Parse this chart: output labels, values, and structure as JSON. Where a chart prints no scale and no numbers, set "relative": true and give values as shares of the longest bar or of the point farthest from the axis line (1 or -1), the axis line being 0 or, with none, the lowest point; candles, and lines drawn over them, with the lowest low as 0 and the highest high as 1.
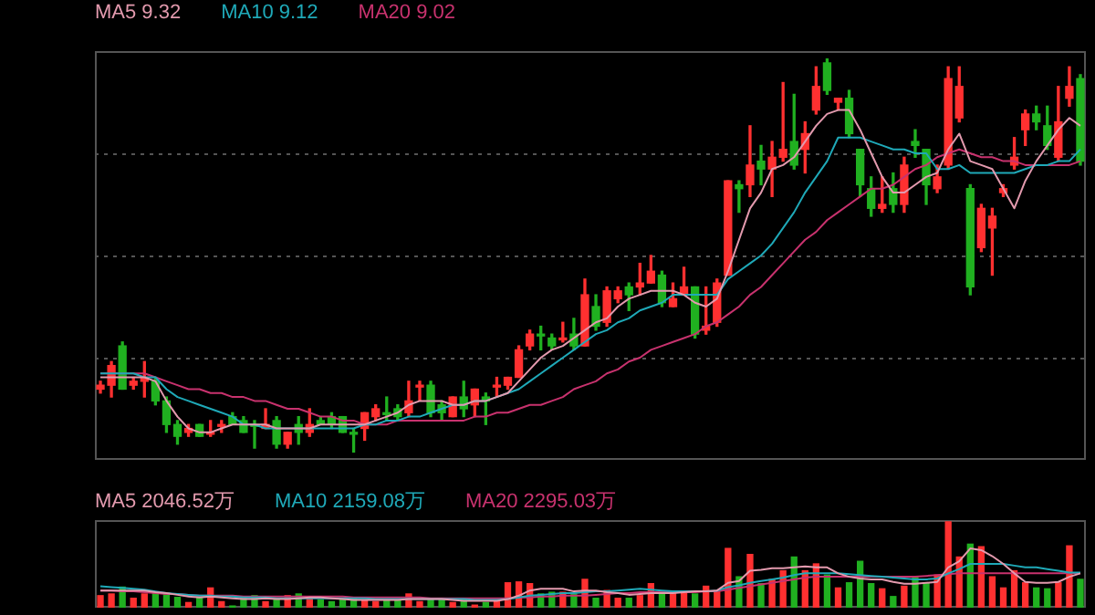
{
  "chart_data": [
    {
      "type": "candlestick",
      "relative": true,
      "grid": true,
      "legend": "top left",
      "categories": [
        null,
        null,
        null,
        null,
        null,
        null,
        null,
        null,
        null,
        null,
        null,
        null,
        null,
        null,
        null,
        null,
        null,
        null,
        null,
        null,
        null,
        null,
        null,
        null,
        null,
        null,
        null,
        null,
        null,
        null,
        null,
        null,
        null,
        null,
        null,
        null,
        null,
        null,
        null,
        null,
        null,
        null,
        null,
        null,
        null,
        null,
        null,
        null,
        null,
        null,
        null,
        null,
        null,
        null,
        null,
        null,
        null,
        null,
        null,
        null,
        null,
        null,
        null,
        null,
        null,
        null,
        null,
        null,
        null,
        null,
        null,
        null,
        null,
        null,
        null,
        null,
        null,
        null,
        null,
        null,
        null,
        null,
        null,
        null,
        null,
        null,
        null,
        null,
        null,
        null
      ],
      "ohlc": [
        [
          0.16,
          0.18,
          0.15,
          0.17
        ],
        [
          0.17,
          0.23,
          0.14,
          0.22
        ],
        [
          0.27,
          0.28,
          0.16,
          0.16
        ],
        [
          0.17,
          0.19,
          0.16,
          0.18
        ],
        [
          0.18,
          0.23,
          0.14,
          0.19
        ],
        [
          0.18,
          0.19,
          0.12,
          0.13
        ],
        [
          0.13,
          0.14,
          0.05,
          0.07
        ],
        [
          0.07,
          0.08,
          0.02,
          0.04
        ],
        [
          0.05,
          0.07,
          0.04,
          0.06
        ],
        [
          0.07,
          0.07,
          0.04,
          0.04
        ],
        [
          0.05,
          0.08,
          0.04,
          0.05
        ],
        [
          0.07,
          0.08,
          0.05,
          0.07
        ],
        [
          0.09,
          0.1,
          0.07,
          0.07
        ],
        [
          0.08,
          0.09,
          0.05,
          0.05
        ],
        [
          0.07,
          0.08,
          0.01,
          0.07
        ],
        [
          0.06,
          0.11,
          0.06,
          0.07
        ],
        [
          0.08,
          0.09,
          0.01,
          0.02
        ],
        [
          0.02,
          0.05,
          0.01,
          0.05
        ],
        [
          0.07,
          0.09,
          0.02,
          0.05
        ],
        [
          0.05,
          0.11,
          0.04,
          0.07
        ],
        [
          0.08,
          0.09,
          0.07,
          0.07
        ],
        [
          0.09,
          0.1,
          0.06,
          0.07
        ],
        [
          0.09,
          0.09,
          0.05,
          0.05
        ],
        [
          0.05,
          0.06,
          0,
          0.05
        ],
        [
          0.06,
          0.1,
          0.03,
          0.1
        ],
        [
          0.09,
          0.12,
          0.08,
          0.11
        ],
        [
          0.1,
          0.14,
          0.08,
          0.1
        ],
        [
          0.11,
          0.12,
          0.08,
          0.09
        ],
        [
          0.1,
          0.18,
          0.09,
          0.13
        ],
        [
          0.17,
          0.18,
          0.13,
          0.17
        ],
        [
          0.17,
          0.18,
          0.09,
          0.1
        ],
        [
          0.12,
          0.13,
          0.08,
          0.1
        ],
        [
          0.09,
          0.14,
          0.09,
          0.14
        ],
        [
          0.14,
          0.18,
          0.09,
          0.11
        ],
        [
          0.12,
          0.16,
          0.09,
          0.16
        ],
        [
          0.14,
          0.15,
          0.07,
          0.13
        ],
        [
          0.17,
          0.19,
          0.14,
          0.17
        ],
        [
          0.17,
          0.19,
          0.16,
          0.19
        ],
        [
          0.19,
          0.27,
          0.19,
          0.26
        ],
        [
          0.27,
          0.31,
          0.26,
          0.3
        ],
        [
          0.3,
          0.32,
          0.26,
          0.3
        ],
        [
          0.29,
          0.3,
          0.26,
          0.27
        ],
        [
          0.29,
          0.33,
          0.28,
          0.29
        ],
        [
          0.3,
          0.34,
          0.26,
          0.27
        ],
        [
          0.27,
          0.44,
          0.27,
          0.4
        ],
        [
          0.37,
          0.4,
          0.31,
          0.32
        ],
        [
          0.33,
          0.42,
          0.32,
          0.41
        ],
        [
          0.39,
          0.42,
          0.38,
          0.41
        ],
        [
          0.42,
          0.43,
          0.36,
          0.4
        ],
        [
          0.42,
          0.48,
          0.4,
          0.43
        ],
        [
          0.43,
          0.5,
          0.43,
          0.46
        ],
        [
          0.45,
          0.46,
          0.37,
          0.38
        ],
        [
          0.37,
          0.43,
          0.37,
          0.39
        ],
        [
          0.4,
          0.47,
          0.4,
          0.42
        ],
        [
          0.42,
          0.42,
          0.29,
          0.3
        ],
        [
          0.31,
          0.42,
          0.3,
          0.32
        ],
        [
          0.33,
          0.44,
          0.32,
          0.43
        ],
        [
          0.45,
          0.69,
          0.45,
          0.69
        ],
        [
          0.68,
          0.69,
          0.61,
          0.67
        ],
        [
          0.68,
          0.83,
          0.65,
          0.73
        ],
        [
          0.74,
          0.78,
          0.68,
          0.72
        ],
        [
          0.72,
          0.79,
          0.65,
          0.75
        ],
        [
          0.75,
          0.94,
          0.74,
          0.77
        ],
        [
          0.79,
          0.91,
          0.72,
          0.73
        ],
        [
          0.77,
          0.84,
          0.71,
          0.81
        ],
        [
          0.87,
          0.98,
          0.86,
          0.93
        ],
        [
          0.99,
          1,
          0.91,
          0.92
        ],
        [
          0.89,
          0.9,
          0.87,
          0.9
        ],
        [
          0.9,
          0.92,
          0.8,
          0.81
        ],
        [
          0.77,
          0.77,
          0.65,
          0.68
        ],
        [
          0.67,
          0.7,
          0.6,
          0.62
        ],
        [
          0.62,
          0.7,
          0.61,
          0.63
        ],
        [
          0.67,
          0.71,
          0.61,
          0.63
        ],
        [
          0.63,
          0.75,
          0.61,
          0.73
        ],
        [
          0.79,
          0.82,
          0.75,
          0.78
        ],
        [
          0.77,
          0.77,
          0.63,
          0.68
        ],
        [
          0.67,
          0.73,
          0.66,
          0.7
        ],
        [
          0.73,
          0.98,
          0.72,
          0.95
        ],
        [
          0.85,
          0.98,
          0.84,
          0.93
        ],
        [
          0.67,
          0.68,
          0.4,
          0.42
        ],
        [
          0.52,
          0.63,
          0.51,
          0.62
        ],
        [
          0.57,
          0.62,
          0.45,
          0.6
        ],
        [
          0.66,
          0.68,
          0.65,
          0.67
        ],
        [
          0.73,
          0.8,
          0.72,
          0.75
        ],
        [
          0.82,
          0.87,
          0.78,
          0.86
        ],
        [
          0.86,
          0.88,
          0.82,
          0.84
        ],
        [
          0.83,
          0.88,
          0.77,
          0.78
        ],
        [
          0.75,
          0.93,
          0.74,
          0.84
        ],
        [
          0.9,
          0.98,
          0.88,
          0.93
        ],
        [
          0.95,
          0.96,
          0.73,
          0.74
        ]
      ],
      "colors": [
        "#ff3030",
        "#ff3030",
        "#20b020",
        "#ff3030",
        "#ff3030",
        "#20b020",
        "#20b020",
        "#20b020",
        "#ff3030",
        "#20b020",
        "#ff3030",
        "#ff3030",
        "#20b020",
        "#20b020",
        "#20b020",
        "#ff3030",
        "#20b020",
        "#ff3030",
        "#20b020",
        "#ff3030",
        "#20b020",
        "#20b020",
        "#20b020",
        "#20b020",
        "#ff3030",
        "#ff3030",
        "#20b020",
        "#20b020",
        "#ff3030",
        "#ff3030",
        "#20b020",
        "#20b020",
        "#ff3030",
        "#20b020",
        "#ff3030",
        "#20b020",
        "#ff3030",
        "#ff3030",
        "#ff3030",
        "#ff3030",
        "#20b020",
        "#20b020",
        "#ff3030",
        "#20b020",
        "#ff3030",
        "#20b020",
        "#ff3030",
        "#ff3030",
        "#20b020",
        "#ff3030",
        "#ff3030",
        "#20b020",
        "#ff3030",
        "#ff3030",
        "#20b020",
        "#ff3030",
        "#ff3030",
        "#ff3030",
        "#20b020",
        "#ff3030",
        "#20b020",
        "#ff3030",
        "#ff3030",
        "#20b020",
        "#ff3030",
        "#ff3030",
        "#20b020",
        "#ff3030",
        "#20b020",
        "#20b020",
        "#20b020",
        "#ff3030",
        "#20b020",
        "#ff3030",
        "#20b020",
        "#20b020",
        "#ff3030",
        "#ff3030",
        "#ff3030",
        "#20b020",
        "#ff3030",
        "#ff3030",
        "#ff3030",
        "#ff3030",
        "#ff3030",
        "#20b020",
        "#20b020",
        "#ff3030",
        "#ff3030",
        "#20b020"
      ],
      "series": [
        {
          "name": "MA5 9.32",
          "type": "line",
          "color": "#e39aae",
          "values": [
            0.19,
            0.19,
            0.19,
            0.19,
            0.19,
            0.18,
            0.13,
            0.09,
            0.06,
            0.05,
            0.05,
            0.06,
            0.07,
            0.07,
            0.07,
            0.07,
            0.06,
            0.06,
            0.06,
            0.06,
            0.07,
            0.07,
            0.07,
            0.07,
            0.07,
            0.08,
            0.09,
            0.1,
            0.12,
            0.13,
            0.13,
            0.13,
            0.12,
            0.12,
            0.13,
            0.13,
            0.14,
            0.15,
            0.18,
            0.21,
            0.24,
            0.26,
            0.27,
            0.29,
            0.31,
            0.33,
            0.34,
            0.37,
            0.39,
            0.4,
            0.41,
            0.41,
            0.41,
            0.4,
            0.38,
            0.37,
            0.39,
            0.46,
            0.54,
            0.62,
            0.66,
            0.72,
            0.73,
            0.75,
            0.79,
            0.83,
            0.86,
            0.87,
            0.87,
            0.82,
            0.76,
            0.7,
            0.66,
            0.66,
            0.68,
            0.7,
            0.71,
            0.77,
            0.81,
            0.74,
            0.73,
            0.72,
            0.67,
            0.62,
            0.69,
            0.74,
            0.78,
            0.82,
            0.85,
            0.83
          ]
        },
        {
          "name": "MA10 9.12",
          "type": "line",
          "color": "#1fa9b8",
          "values": [
            0.2,
            0.2,
            0.2,
            0.2,
            0.19,
            0.19,
            0.16,
            0.14,
            0.13,
            0.12,
            0.11,
            0.1,
            0.09,
            0.07,
            0.07,
            0.06,
            0.06,
            0.06,
            0.06,
            0.06,
            0.06,
            0.06,
            0.06,
            0.06,
            0.07,
            0.07,
            0.08,
            0.08,
            0.09,
            0.09,
            0.1,
            0.11,
            0.12,
            0.12,
            0.13,
            0.13,
            0.14,
            0.15,
            0.16,
            0.18,
            0.2,
            0.22,
            0.24,
            0.26,
            0.28,
            0.3,
            0.31,
            0.33,
            0.34,
            0.36,
            0.37,
            0.38,
            0.4,
            0.4,
            0.4,
            0.4,
            0.4,
            0.44,
            0.46,
            0.48,
            0.5,
            0.53,
            0.57,
            0.61,
            0.66,
            0.7,
            0.74,
            0.8,
            0.8,
            0.8,
            0.79,
            0.78,
            0.77,
            0.77,
            0.76,
            0.76,
            0.72,
            0.72,
            0.73,
            0.71,
            0.71,
            0.71,
            0.71,
            0.71,
            0.72,
            0.73,
            0.73,
            0.74,
            0.74,
            0.77
          ]
        },
        {
          "name": "MA20 9.02",
          "type": "line",
          "color": "#c8326e",
          "values": [
            0.2,
            0.2,
            0.2,
            0.2,
            0.2,
            0.19,
            0.18,
            0.17,
            0.16,
            0.16,
            0.15,
            0.15,
            0.14,
            0.14,
            0.13,
            0.13,
            0.12,
            0.11,
            0.11,
            0.1,
            0.09,
            0.09,
            0.08,
            0.08,
            0.07,
            0.07,
            0.07,
            0.08,
            0.08,
            0.08,
            0.08,
            0.08,
            0.08,
            0.08,
            0.09,
            0.09,
            0.1,
            0.1,
            0.11,
            0.12,
            0.12,
            0.13,
            0.14,
            0.16,
            0.17,
            0.18,
            0.2,
            0.21,
            0.23,
            0.24,
            0.26,
            0.27,
            0.28,
            0.29,
            0.3,
            0.32,
            0.33,
            0.35,
            0.37,
            0.4,
            0.42,
            0.45,
            0.48,
            0.51,
            0.54,
            0.56,
            0.59,
            0.61,
            0.63,
            0.65,
            0.67,
            0.67,
            0.68,
            0.7,
            0.72,
            0.73,
            0.75,
            0.76,
            0.77,
            0.76,
            0.75,
            0.75,
            0.74,
            0.74,
            0.73,
            0.73,
            0.73,
            0.73,
            0.73,
            0.74
          ]
        }
      ]
    },
    {
      "type": "bar",
      "relative": true,
      "legend": "top left",
      "categories": [
        null,
        null,
        null,
        null,
        null,
        null,
        null,
        null,
        null,
        null,
        null,
        null,
        null,
        null,
        null,
        null,
        null,
        null,
        null,
        null,
        null,
        null,
        null,
        null,
        null,
        null,
        null,
        null,
        null,
        null,
        null,
        null,
        null,
        null,
        null,
        null,
        null,
        null,
        null,
        null,
        null,
        null,
        null,
        null,
        null,
        null,
        null,
        null,
        null,
        null,
        null,
        null,
        null,
        null,
        null,
        null,
        null,
        null,
        null,
        null,
        null,
        null,
        null,
        null,
        null,
        null,
        null,
        null,
        null,
        null,
        null,
        null,
        null,
        null,
        null,
        null,
        null,
        null,
        null,
        null,
        null,
        null,
        null,
        null,
        null,
        null,
        null,
        null,
        null,
        null
      ],
      "series": [
        {
          "type": "bar",
          "values": [
            0.14,
            0.16,
            0.24,
            0.11,
            0.16,
            0.17,
            0.17,
            0.12,
            0.06,
            0.12,
            0.23,
            0.07,
            0.02,
            0.11,
            0.14,
            0.07,
            0.11,
            0.14,
            0.16,
            0.11,
            0.09,
            0.07,
            0.09,
            0.11,
            0.09,
            0.07,
            0.09,
            0.09,
            0.16,
            0.07,
            0.09,
            0.09,
            0.06,
            0.09,
            0.03,
            0.06,
            0.07,
            0.29,
            0.3,
            0.28,
            0.16,
            0.18,
            0.18,
            0.16,
            0.33,
            0.11,
            0.2,
            0.11,
            0.11,
            0.14,
            0.28,
            0.16,
            0.18,
            0.18,
            0.16,
            0.25,
            0.2,
            0.69,
            0.36,
            0.62,
            0.28,
            0.33,
            0.43,
            0.59,
            0.43,
            0.51,
            0.38,
            0.23,
            0.29,
            0.54,
            0.28,
            0.22,
            0.13,
            0.25,
            0.36,
            0.29,
            0.38,
            1,
            0.59,
            0.74,
            0.71,
            0.36,
            0.23,
            0.43,
            0.29,
            0.23,
            0.22,
            0.29,
            0.72,
            0.33
          ],
          "colors": [
            "#ff3030",
            "#ff3030",
            "#20b020",
            "#ff3030",
            "#ff3030",
            "#20b020",
            "#20b020",
            "#20b020",
            "#ff3030",
            "#20b020",
            "#ff3030",
            "#ff3030",
            "#20b020",
            "#20b020",
            "#20b020",
            "#ff3030",
            "#20b020",
            "#ff3030",
            "#20b020",
            "#ff3030",
            "#20b020",
            "#20b020",
            "#20b020",
            "#20b020",
            "#ff3030",
            "#ff3030",
            "#20b020",
            "#20b020",
            "#ff3030",
            "#ff3030",
            "#20b020",
            "#20b020",
            "#ff3030",
            "#20b020",
            "#ff3030",
            "#20b020",
            "#ff3030",
            "#ff3030",
            "#ff3030",
            "#ff3030",
            "#20b020",
            "#20b020",
            "#ff3030",
            "#20b020",
            "#ff3030",
            "#20b020",
            "#ff3030",
            "#ff3030",
            "#20b020",
            "#ff3030",
            "#ff3030",
            "#20b020",
            "#ff3030",
            "#ff3030",
            "#20b020",
            "#ff3030",
            "#ff3030",
            "#ff3030",
            "#20b020",
            "#ff3030",
            "#20b020",
            "#ff3030",
            "#ff3030",
            "#20b020",
            "#ff3030",
            "#ff3030",
            "#20b020",
            "#ff3030",
            "#20b020",
            "#20b020",
            "#20b020",
            "#ff3030",
            "#20b020",
            "#ff3030",
            "#20b020",
            "#20b020",
            "#ff3030",
            "#ff3030",
            "#ff3030",
            "#20b020",
            "#ff3030",
            "#ff3030",
            "#ff3030",
            "#ff3030",
            "#ff3030",
            "#20b020",
            "#20b020",
            "#ff3030",
            "#ff3030",
            "#20b020"
          ]
        },
        {
          "name": "MA5 2046.52万",
          "type": "line",
          "color": "#e39aae",
          "values": [
            0.2,
            0.2,
            0.2,
            0.2,
            0.2,
            0.18,
            0.17,
            0.15,
            0.13,
            0.12,
            0.13,
            0.12,
            0.11,
            0.1,
            0.1,
            0.11,
            0.1,
            0.1,
            0.11,
            0.12,
            0.12,
            0.11,
            0.1,
            0.09,
            0.09,
            0.09,
            0.09,
            0.09,
            0.1,
            0.1,
            0.1,
            0.1,
            0.09,
            0.08,
            0.08,
            0.08,
            0.08,
            0.1,
            0.14,
            0.2,
            0.22,
            0.22,
            0.22,
            0.19,
            0.2,
            0.2,
            0.18,
            0.17,
            0.15,
            0.16,
            0.17,
            0.17,
            0.17,
            0.18,
            0.19,
            0.19,
            0.2,
            0.29,
            0.31,
            0.43,
            0.44,
            0.46,
            0.46,
            0.47,
            0.48,
            0.47,
            0.47,
            0.4,
            0.36,
            0.34,
            0.33,
            0.33,
            0.3,
            0.28,
            0.28,
            0.29,
            0.3,
            0.47,
            0.54,
            0.69,
            0.67,
            0.6,
            0.51,
            0.4,
            0.3,
            0.29,
            0.29,
            0.3,
            0.36,
            0.4
          ]
        },
        {
          "name": "MA10 2159.08万",
          "type": "line",
          "color": "#1fa9b8",
          "values": [
            0.25,
            0.24,
            0.23,
            0.22,
            0.21,
            0.19,
            0.17,
            0.16,
            0.15,
            0.14,
            0.14,
            0.13,
            0.13,
            0.12,
            0.12,
            0.12,
            0.11,
            0.11,
            0.11,
            0.11,
            0.11,
            0.11,
            0.11,
            0.11,
            0.11,
            0.1,
            0.1,
            0.1,
            0.1,
            0.1,
            0.1,
            0.1,
            0.1,
            0.1,
            0.09,
            0.09,
            0.09,
            0.1,
            0.12,
            0.14,
            0.15,
            0.16,
            0.17,
            0.17,
            0.18,
            0.19,
            0.19,
            0.2,
            0.21,
            0.22,
            0.21,
            0.2,
            0.19,
            0.19,
            0.19,
            0.19,
            0.2,
            0.24,
            0.26,
            0.29,
            0.31,
            0.33,
            0.35,
            0.38,
            0.4,
            0.4,
            0.4,
            0.4,
            0.39,
            0.38,
            0.37,
            0.36,
            0.35,
            0.34,
            0.33,
            0.33,
            0.34,
            0.4,
            0.45,
            0.51,
            0.51,
            0.51,
            0.51,
            0.49,
            0.47,
            0.47,
            0.45,
            0.43,
            0.41,
            0.41
          ]
        },
        {
          "name": "MA20 2295.03万",
          "type": "line",
          "color": "#c8326e",
          "values": [
            0.2,
            0.2,
            0.19,
            0.19,
            0.18,
            0.17,
            0.16,
            0.16,
            0.15,
            0.14,
            0.14,
            0.14,
            0.14,
            0.13,
            0.13,
            0.13,
            0.13,
            0.13,
            0.13,
            0.13,
            0.13,
            0.13,
            0.13,
            0.12,
            0.12,
            0.12,
            0.12,
            0.12,
            0.12,
            0.12,
            0.11,
            0.11,
            0.11,
            0.11,
            0.11,
            0.11,
            0.11,
            0.11,
            0.12,
            0.12,
            0.13,
            0.13,
            0.14,
            0.14,
            0.14,
            0.15,
            0.16,
            0.17,
            0.17,
            0.18,
            0.18,
            0.18,
            0.18,
            0.18,
            0.18,
            0.19,
            0.19,
            0.21,
            0.23,
            0.25,
            0.27,
            0.29,
            0.31,
            0.33,
            0.35,
            0.36,
            0.36,
            0.36,
            0.36,
            0.36,
            0.36,
            0.36,
            0.36,
            0.36,
            0.36,
            0.37,
            0.38,
            0.39,
            0.4,
            0.4,
            0.4,
            0.4,
            0.4,
            0.4,
            0.4,
            0.4,
            0.4,
            0.4,
            0.4,
            0.4
          ]
        }
      ]
    }
  ]
}
